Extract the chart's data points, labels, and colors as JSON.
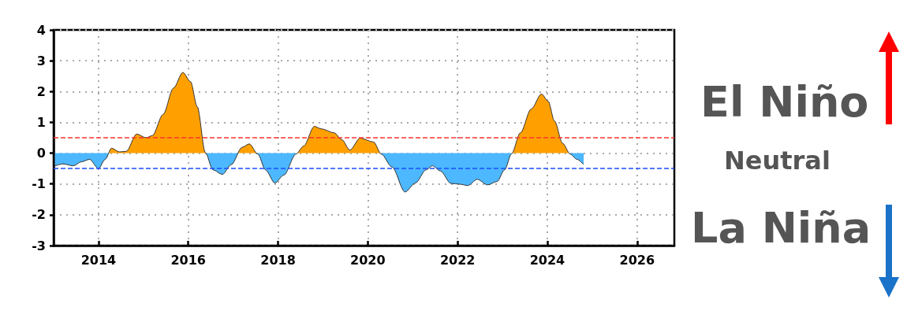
{
  "chart_data": {
    "type": "area",
    "x": [
      2013.03,
      2013.21,
      2013.44,
      2013.62,
      2013.8,
      2014.0,
      2014.15,
      2014.29,
      2014.47,
      2014.62,
      2014.85,
      2015.06,
      2015.2,
      2015.44,
      2015.67,
      2015.88,
      2016.05,
      2016.2,
      2016.38,
      2016.55,
      2016.76,
      2016.96,
      2017.2,
      2017.36,
      2017.55,
      2017.72,
      2017.93,
      2018.13,
      2018.4,
      2018.57,
      2018.81,
      2018.96,
      2019.25,
      2019.42,
      2019.6,
      2019.83,
      2020.13,
      2020.3,
      2020.54,
      2020.83,
      2021.06,
      2021.3,
      2021.44,
      2021.62,
      2021.85,
      2022.06,
      2022.23,
      2022.44,
      2022.67,
      2022.88,
      2023.05,
      2023.2,
      2023.4,
      2023.64,
      2023.87,
      2024.02,
      2024.16,
      2024.34,
      2024.51,
      2024.66,
      2024.81
    ],
    "series": [
      {
        "color": "#333333",
        "colors": [
          "#4db8ff",
          "#4db8ff",
          "#4db8ff",
          "#4db8ff",
          "#4db8ff",
          "#4db8ff",
          "#4db8ff",
          "#ffa000",
          "#ffa000",
          "#ffa000",
          "#ffa000",
          "#ffa000",
          "#ffa000",
          "#ffa000",
          "#ffa000",
          "#ffa000",
          "#ffa000",
          "#ffa000",
          "#ffa000",
          "#4db8ff",
          "#4db8ff",
          "#4db8ff",
          "#ffa000",
          "#ffa000",
          "#4db8ff",
          "#4db8ff",
          "#4db8ff",
          "#4db8ff",
          "#4db8ff",
          "#ffa000",
          "#ffa000",
          "#ffa000",
          "#ffa000",
          "#ffa000",
          "#ffa000",
          "#ffa000",
          "#ffa000",
          "#4db8ff",
          "#4db8ff",
          "#4db8ff",
          "#4db8ff",
          "#4db8ff",
          "#4db8ff",
          "#4db8ff",
          "#4db8ff",
          "#4db8ff",
          "#4db8ff",
          "#4db8ff",
          "#4db8ff",
          "#4db8ff",
          "#4db8ff",
          "#4db8ff",
          "#ffa000",
          "#ffa000",
          "#ffa000",
          "#ffa000",
          "#ffa000",
          "#ffa000",
          "#4db8ff",
          "#4db8ff",
          "#4db8ff"
        ],
        "values": [
          -0.41,
          -0.35,
          -0.41,
          -0.28,
          -0.2,
          -0.5,
          -0.2,
          0.16,
          0.04,
          0.06,
          0.62,
          0.5,
          0.57,
          1.26,
          2.11,
          2.62,
          2.32,
          1.51,
          0.02,
          -0.54,
          -0.69,
          -0.37,
          0.19,
          0.3,
          -0.03,
          -0.54,
          -0.97,
          -0.71,
          -0.03,
          0.23,
          0.87,
          0.79,
          0.66,
          0.44,
          0.1,
          0.49,
          0.36,
          -0.03,
          -0.45,
          -1.26,
          -0.97,
          -0.54,
          -0.41,
          -0.58,
          -0.98,
          -1.01,
          -1.05,
          -0.85,
          -1.03,
          -0.92,
          -0.54,
          -0.03,
          0.66,
          1.43,
          1.92,
          1.68,
          1.04,
          0.32,
          -0.03,
          -0.2,
          -0.37
        ]
      }
    ],
    "xlim": [
      2013,
      2026.83
    ],
    "xticks": [
      2014,
      2016,
      2018,
      2020,
      2022,
      2024,
      2026
    ],
    "ylim": [
      -3,
      4
    ],
    "yticks": [
      -3,
      -2,
      -1,
      0,
      1,
      2,
      3,
      4
    ],
    "ref_lines": [
      {
        "axis": "y",
        "value": 0.5,
        "color": "#ff3333",
        "line_style": "dashed"
      },
      {
        "axis": "y",
        "value": -0.5,
        "color": "#1a4dff",
        "line_style": "dashed"
      }
    ],
    "annotations": [
      "El Niño",
      "Neutral",
      "La Niña"
    ],
    "grid": true,
    "marker": "none",
    "line_style": "solid"
  }
}
